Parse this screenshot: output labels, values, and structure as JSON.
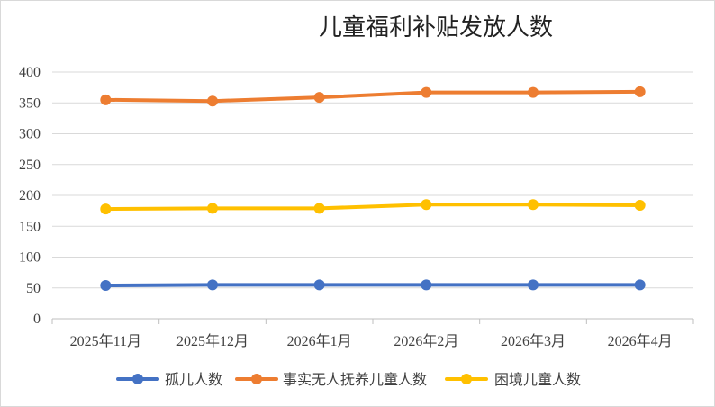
{
  "chart_data": {
    "type": "line",
    "title": "儿童福利补贴发放人数",
    "categories": [
      "2025年11月",
      "2025年12月",
      "2026年1月",
      "2026年2月",
      "2026年3月",
      "2026年4月"
    ],
    "series": [
      {
        "name": "孤儿人数",
        "color": "#4472C4",
        "values": [
          54,
          55,
          55,
          55,
          55,
          55
        ]
      },
      {
        "name": "事实无人抚养儿童人数",
        "color": "#ED7D31",
        "values": [
          355,
          353,
          359,
          367,
          367,
          368
        ]
      },
      {
        "name": "困境儿童人数",
        "color": "#FFC000",
        "values": [
          178,
          179,
          179,
          185,
          185,
          184
        ]
      }
    ],
    "y_ticks": [
      "0",
      "50",
      "100",
      "150",
      "200",
      "250",
      "300",
      "350",
      "400"
    ],
    "ylim": [
      0,
      400
    ],
    "grid": true,
    "legend": "bottom",
    "xlabel": "",
    "ylabel": ""
  }
}
